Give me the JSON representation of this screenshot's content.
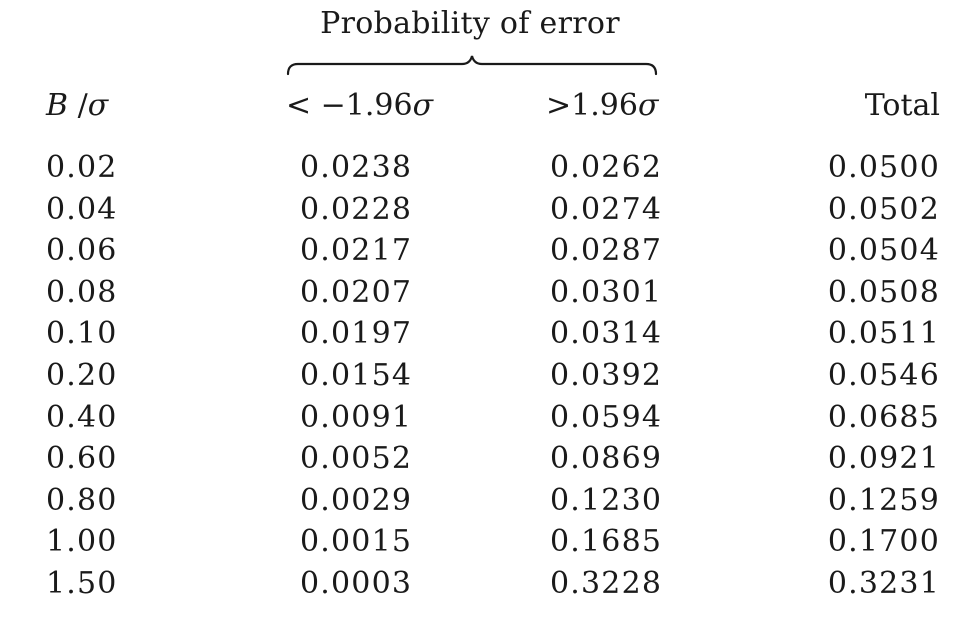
{
  "table": {
    "group_header": "Probability of error",
    "columns": {
      "b_sigma": {
        "main": "B",
        "slash": " /",
        "sigma": "σ"
      },
      "lower": {
        "prefix": "< −1.96",
        "sigma": "σ"
      },
      "upper": {
        "prefix": ">1.96",
        "sigma": "σ"
      },
      "total": "Total"
    },
    "rows": [
      [
        "0.02",
        "0.0238",
        "0.0262",
        "0.0500"
      ],
      [
        "0.04",
        "0.0228",
        "0.0274",
        "0.0502"
      ],
      [
        "0.06",
        "0.0217",
        "0.0287",
        "0.0504"
      ],
      [
        "0.08",
        "0.0207",
        "0.0301",
        "0.0508"
      ],
      [
        "0.10",
        "0.0197",
        "0.0314",
        "0.0511"
      ],
      [
        "0.20",
        "0.0154",
        "0.0392",
        "0.0546"
      ],
      [
        "0.40",
        "0.0091",
        "0.0594",
        "0.0685"
      ],
      [
        "0.60",
        "0.0052",
        "0.0869",
        "0.0921"
      ],
      [
        "0.80",
        "0.0029",
        "0.1230",
        "0.1259"
      ],
      [
        "1.00",
        "0.0015",
        "0.1685",
        "0.1700"
      ],
      [
        "1.50",
        "0.0003",
        "0.3228",
        "0.3231"
      ]
    ]
  }
}
